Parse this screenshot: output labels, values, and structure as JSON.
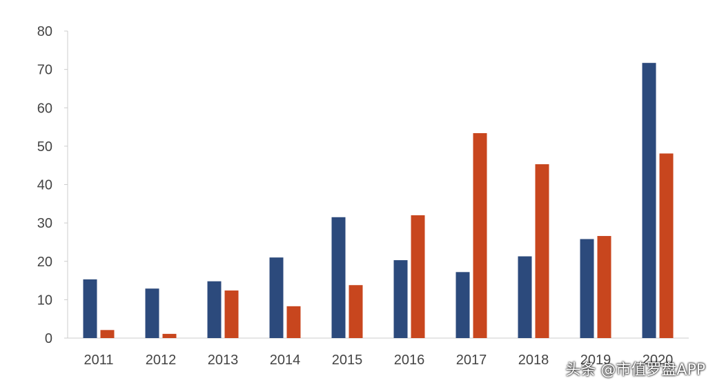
{
  "chart_data": {
    "type": "bar",
    "title": "",
    "xlabel": "",
    "ylabel": "",
    "categories": [
      "2011",
      "2012",
      "2013",
      "2014",
      "2015",
      "2016",
      "2017",
      "2018",
      "2019",
      "2020"
    ],
    "series": [
      {
        "values": [
          15.3,
          12.9,
          14.8,
          21.0,
          31.5,
          20.3,
          17.2,
          21.3,
          25.8,
          71.7
        ]
      },
      {
        "values": [
          2.1,
          1.1,
          12.4,
          8.3,
          13.8,
          32.0,
          53.4,
          45.3,
          26.6,
          48.1
        ]
      }
    ],
    "yticks": [
      0,
      10,
      20,
      30,
      40,
      50,
      60,
      70,
      80
    ],
    "ylim": [
      0,
      80
    ],
    "grid": false,
    "colors": [
      "#2c4a7c",
      "#c8461e"
    ]
  },
  "watermark": "头条 @市值罗盘APP"
}
